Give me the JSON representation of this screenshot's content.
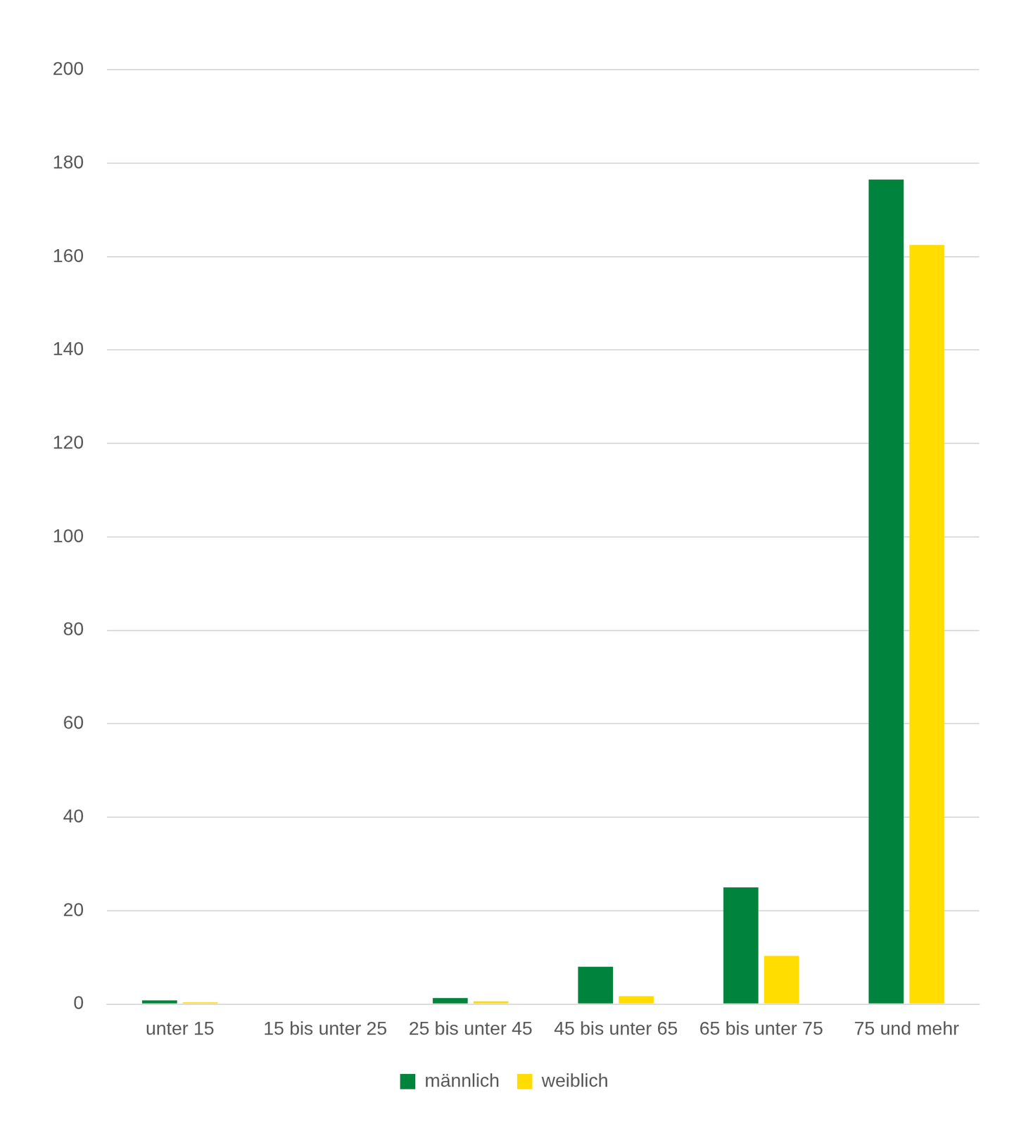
{
  "chart_data": {
    "type": "bar",
    "categories": [
      "unter 15",
      "15 bis unter 25",
      "25 bis unter 45",
      "45 bis unter 65",
      "65 bis unter 75",
      "75 und mehr"
    ],
    "series": [
      {
        "name": "männlich",
        "color": "#00843d",
        "values": [
          0.8,
          0,
          1.3,
          8,
          25,
          176.5
        ]
      },
      {
        "name": "weiblich",
        "color": "#ffdd00",
        "values": [
          0.4,
          0,
          0.6,
          1.7,
          10.3,
          162.5
        ]
      }
    ],
    "ylim": [
      0,
      200
    ],
    "yticks": [
      0,
      20,
      40,
      60,
      80,
      100,
      120,
      140,
      160,
      180,
      200
    ],
    "grid": true,
    "legend": "bottom"
  }
}
